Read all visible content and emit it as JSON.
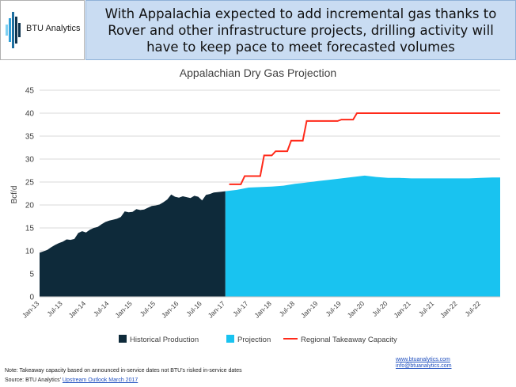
{
  "header": {
    "logo_text": "BTU Analytics",
    "headline": "With Appalachia expected to add incremental gas thanks to Rover and other infrastructure projects, drilling activity will have to keep pace to meet forecasted volumes"
  },
  "colors": {
    "historical": "#0e2a3a",
    "projection": "#19c3f0",
    "takeaway": "#ff2a1a",
    "logo_bars": [
      "#0e3550",
      "#1e6fa0",
      "#2f9fd8",
      "#7fd0f2"
    ]
  },
  "chart_data": {
    "type": "area",
    "title": "Appalachian Dry Gas Projection",
    "ylabel": "Bcf/d",
    "xlabel": "",
    "ylim": [
      0,
      45
    ],
    "yticks": [
      0,
      5,
      10,
      15,
      20,
      25,
      30,
      35,
      40,
      45
    ],
    "xlim": [
      "2013-01",
      "2022-12"
    ],
    "xtick_labels": [
      "Jan-13",
      "Jul-13",
      "Jan-14",
      "Jul-14",
      "Jan-15",
      "Jul-15",
      "Jan-16",
      "Jul-16",
      "Jan-17",
      "Jul-17",
      "Jan-18",
      "Jul-18",
      "Jan-19",
      "Jul-19",
      "Jan-20",
      "Jul-20",
      "Jan-21",
      "Jul-21",
      "Jan-22",
      "Jul-22"
    ],
    "legend_position": "bottom",
    "series": [
      {
        "name": "Historical Production",
        "type": "area",
        "x": [
          "2013-01",
          "2013-02",
          "2013-03",
          "2013-04",
          "2013-05",
          "2013-06",
          "2013-07",
          "2013-08",
          "2013-09",
          "2013-10",
          "2013-11",
          "2013-12",
          "2014-01",
          "2014-02",
          "2014-03",
          "2014-04",
          "2014-05",
          "2014-06",
          "2014-07",
          "2014-08",
          "2014-09",
          "2014-10",
          "2014-11",
          "2014-12",
          "2015-01",
          "2015-02",
          "2015-03",
          "2015-04",
          "2015-05",
          "2015-06",
          "2015-07",
          "2015-08",
          "2015-09",
          "2015-10",
          "2015-11",
          "2015-12",
          "2016-01",
          "2016-02",
          "2016-03",
          "2016-04",
          "2016-05",
          "2016-06",
          "2016-07",
          "2016-08",
          "2016-09",
          "2016-10",
          "2016-11",
          "2016-12",
          "2017-01"
        ],
        "values": [
          9.6,
          9.9,
          10.2,
          10.8,
          11.3,
          11.7,
          12.0,
          12.5,
          12.4,
          12.6,
          13.9,
          14.3,
          14.0,
          14.6,
          15.0,
          15.2,
          15.8,
          16.3,
          16.6,
          16.8,
          17.0,
          17.4,
          18.6,
          18.4,
          18.5,
          19.1,
          18.9,
          19.0,
          19.4,
          19.8,
          19.9,
          20.1,
          20.6,
          21.2,
          22.3,
          21.8,
          21.6,
          21.9,
          21.7,
          21.5,
          22.0,
          21.8,
          21.0,
          22.2,
          22.4,
          22.7,
          22.8,
          22.9,
          23.0
        ]
      },
      {
        "name": "Projection",
        "type": "area",
        "x": [
          "2017-01",
          "2017-04",
          "2017-07",
          "2017-10",
          "2018-01",
          "2018-04",
          "2018-07",
          "2018-10",
          "2019-01",
          "2019-04",
          "2019-07",
          "2019-10",
          "2020-01",
          "2020-04",
          "2020-07",
          "2020-10",
          "2021-01",
          "2021-04",
          "2021-07",
          "2021-10",
          "2022-01",
          "2022-04",
          "2022-07",
          "2022-10",
          "2022-12"
        ],
        "values": [
          23.0,
          23.3,
          23.8,
          23.9,
          24.0,
          24.2,
          24.6,
          24.9,
          25.2,
          25.5,
          25.8,
          26.1,
          26.4,
          26.1,
          25.9,
          25.9,
          25.8,
          25.8,
          25.8,
          25.8,
          25.8,
          25.8,
          25.9,
          26.0,
          26.0
        ]
      },
      {
        "name": "Regional Takeaway Capacity",
        "type": "step",
        "x": [
          "2017-02",
          "2017-05",
          "2017-06",
          "2017-10",
          "2017-11",
          "2018-01",
          "2018-02",
          "2018-05",
          "2018-06",
          "2018-09",
          "2018-10",
          "2019-06",
          "2019-07",
          "2019-10",
          "2019-11",
          "2022-12"
        ],
        "values": [
          24.5,
          24.5,
          26.3,
          26.3,
          30.8,
          30.8,
          31.7,
          31.7,
          34.0,
          34.0,
          38.3,
          38.3,
          38.6,
          38.6,
          40.0,
          40.0
        ]
      }
    ]
  },
  "footer": {
    "link1": "www.btuanalytics.com",
    "link2": "info@btuanalytics.com",
    "note": "Note: Takeaway capacity based on announced in-service dates not BTU's risked in-service dates",
    "source_prefix": "Source: BTU Analytics' ",
    "source_link": "Upstream Outlook March 2017"
  }
}
